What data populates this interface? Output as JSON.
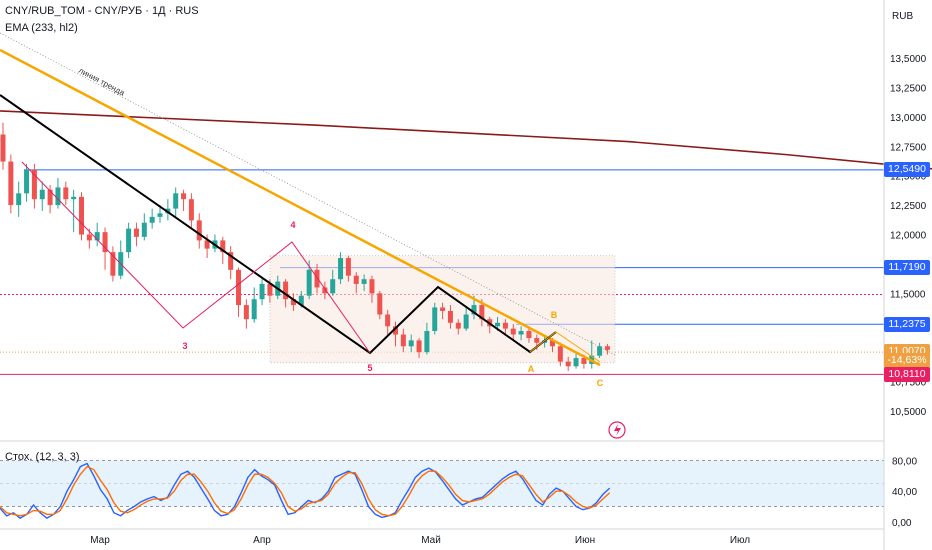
{
  "header": {
    "symbol": "CNY/RUB_TOM - CNY/РУБ · 1Д · RUS",
    "indicator": "EMA (233, hl2)"
  },
  "axis": {
    "currency": "RUB",
    "ticks": [
      "13,5000",
      "13,2500",
      "13,0000",
      "12,7500",
      "12,5000",
      "12,2500",
      "12,0000",
      "11,7500",
      "11,5000",
      "11,2500",
      "11,0000",
      "10,7500",
      "10,5000"
    ],
    "tick_values": [
      13.5,
      13.25,
      13.0,
      12.75,
      12.5,
      12.25,
      12.0,
      11.75,
      11.5,
      11.25,
      11.0,
      10.75,
      10.5
    ],
    "months": [
      "Мар",
      "Апр",
      "Май",
      "Июн",
      "Июл"
    ]
  },
  "price_tags": [
    {
      "label": "12,5490",
      "value": 12.549,
      "color": "#2962ff"
    },
    {
      "label": "11,7190",
      "value": 11.719,
      "color": "#2962ff"
    },
    {
      "label": "11,2375",
      "value": 11.2375,
      "color": "#2962ff"
    },
    {
      "label": "11,0070",
      "value": 11.007,
      "color": "#f0a040"
    },
    {
      "label": "-14,63%",
      "value": 10.93,
      "color": "#f0a040"
    },
    {
      "label": "10,8110",
      "value": 10.811,
      "color": "#e91e63"
    }
  ],
  "annotations": {
    "trend_label": "линия тренда",
    "waves": [
      {
        "t": "3",
        "c": "#e91e63"
      },
      {
        "t": "4",
        "c": "#e91e63"
      },
      {
        "t": "5",
        "c": "#e91e63"
      },
      {
        "t": "A",
        "c": "#f7a600"
      },
      {
        "t": "B",
        "c": "#f7a600"
      },
      {
        "t": "C",
        "c": "#f7a600"
      }
    ]
  },
  "stochastic": {
    "label": "Стох. (12, 3, 3)",
    "ticks": [
      "80,00",
      "40,00",
      "0,00"
    ],
    "tick_values": [
      80,
      40,
      0
    ]
  },
  "chart_data": {
    "type": "candlestick",
    "ylim": [
      10.35,
      13.6
    ],
    "ema": [
      [
        0,
        13.05
      ],
      [
        20,
        12.99
      ],
      [
        40,
        12.93
      ],
      [
        60,
        12.86
      ],
      [
        80,
        12.79
      ],
      [
        100,
        12.68
      ],
      [
        120,
        12.55
      ],
      [
        140,
        12.4
      ],
      [
        152,
        12.25
      ]
    ],
    "candles": [
      [
        12.85,
        12.62,
        12.95,
        12.55
      ],
      [
        12.62,
        12.25,
        12.68,
        12.18
      ],
      [
        12.25,
        12.35,
        12.45,
        12.15
      ],
      [
        12.35,
        12.55,
        12.6,
        12.28
      ],
      [
        12.55,
        12.3,
        12.6,
        12.22
      ],
      [
        12.3,
        12.38,
        12.45,
        12.2
      ],
      [
        12.38,
        12.25,
        12.42,
        12.18
      ],
      [
        12.25,
        12.4,
        12.48,
        12.22
      ],
      [
        12.4,
        12.3,
        12.45,
        12.25
      ],
      [
        12.3,
        12.32,
        12.38,
        12.02
      ],
      [
        12.32,
        12.0,
        12.36,
        11.95
      ],
      [
        12.0,
        11.95,
        12.05,
        11.88
      ],
      [
        11.95,
        12.02,
        12.1,
        11.9
      ],
      [
        12.02,
        11.85,
        12.06,
        11.7
      ],
      [
        11.85,
        11.65,
        11.9,
        11.6
      ],
      [
        11.65,
        11.85,
        11.95,
        11.62
      ],
      [
        11.85,
        12.05,
        12.1,
        11.8
      ],
      [
        12.05,
        11.98,
        12.1,
        11.9
      ],
      [
        11.98,
        12.1,
        12.18,
        11.95
      ],
      [
        12.1,
        12.15,
        12.22,
        12.05
      ],
      [
        12.15,
        12.18,
        12.25,
        12.1
      ],
      [
        12.18,
        12.22,
        12.3,
        12.12
      ],
      [
        12.22,
        12.35,
        12.4,
        12.15
      ],
      [
        12.35,
        12.3,
        12.38,
        12.2
      ],
      [
        12.3,
        12.12,
        12.35,
        12.05
      ],
      [
        12.12,
        11.95,
        12.18,
        11.88
      ],
      [
        11.95,
        11.88,
        12.0,
        11.8
      ],
      [
        11.88,
        11.95,
        12.0,
        11.85
      ],
      [
        11.95,
        11.85,
        11.98,
        11.75
      ],
      [
        11.85,
        11.7,
        11.9,
        11.62
      ],
      [
        11.7,
        11.4,
        11.72,
        11.3
      ],
      [
        11.4,
        11.28,
        11.45,
        11.2
      ],
      [
        11.28,
        11.45,
        11.55,
        11.25
      ],
      [
        11.45,
        11.58,
        11.62,
        11.4
      ],
      [
        11.58,
        11.48,
        11.62,
        11.42
      ],
      [
        11.48,
        11.6,
        11.65,
        11.45
      ],
      [
        11.6,
        11.45,
        11.62,
        11.38
      ],
      [
        11.45,
        11.4,
        11.5,
        11.35
      ],
      [
        11.4,
        11.48,
        11.52,
        11.38
      ],
      [
        11.48,
        11.7,
        11.78,
        11.45
      ],
      [
        11.7,
        11.55,
        11.75,
        11.5
      ],
      [
        11.55,
        11.5,
        11.6,
        11.45
      ],
      [
        11.5,
        11.62,
        11.7,
        11.48
      ],
      [
        11.62,
        11.8,
        11.85,
        11.58
      ],
      [
        11.8,
        11.65,
        11.82,
        11.6
      ],
      [
        11.65,
        11.58,
        11.68,
        11.5
      ],
      [
        11.58,
        11.62,
        11.66,
        11.52
      ],
      [
        11.62,
        11.5,
        11.65,
        11.42
      ],
      [
        11.5,
        11.32,
        11.52,
        11.28
      ],
      [
        11.32,
        11.22,
        11.36,
        11.15
      ],
      [
        11.22,
        11.15,
        11.26,
        11.05
      ],
      [
        11.15,
        11.05,
        11.2,
        11.0
      ],
      [
        11.05,
        11.1,
        11.15,
        11.0
      ],
      [
        11.1,
        11.0,
        11.12,
        10.95
      ],
      [
        11.0,
        11.18,
        11.25,
        10.98
      ],
      [
        11.18,
        11.38,
        11.42,
        11.15
      ],
      [
        11.38,
        11.35,
        11.42,
        11.28
      ],
      [
        11.35,
        11.25,
        11.4,
        11.2
      ],
      [
        11.25,
        11.2,
        11.28,
        11.15
      ],
      [
        11.2,
        11.32,
        11.38,
        11.18
      ],
      [
        11.32,
        11.4,
        11.48,
        11.28
      ],
      [
        11.4,
        11.28,
        11.45,
        11.22
      ],
      [
        11.28,
        11.22,
        11.3,
        11.16
      ],
      [
        11.22,
        11.25,
        11.3,
        11.18
      ],
      [
        11.25,
        11.2,
        11.28,
        11.14
      ],
      [
        11.2,
        11.15,
        11.24,
        11.1
      ],
      [
        11.15,
        11.18,
        11.22,
        11.1
      ],
      [
        11.18,
        11.12,
        11.22,
        11.08
      ],
      [
        11.12,
        11.08,
        11.15,
        11.02
      ],
      [
        11.08,
        11.1,
        11.14,
        11.04
      ],
      [
        11.1,
        11.05,
        11.12,
        11.0
      ],
      [
        11.05,
        10.92,
        11.08,
        10.88
      ],
      [
        10.92,
        10.88,
        10.96,
        10.84
      ],
      [
        10.88,
        10.95,
        11.0,
        10.86
      ],
      [
        10.95,
        10.9,
        10.98,
        10.86
      ],
      [
        10.9,
        10.97,
        11.1,
        10.86
      ],
      [
        10.97,
        11.05,
        11.08,
        10.95
      ],
      [
        11.05,
        11.02,
        11.07,
        10.98
      ]
    ],
    "stochastic": {
      "k": [
        18,
        8,
        12,
        5,
        10,
        22,
        12,
        5,
        10,
        20,
        40,
        55,
        72,
        76,
        60,
        42,
        30,
        12,
        8,
        15,
        20,
        26,
        30,
        33,
        28,
        32,
        48,
        62,
        66,
        58,
        44,
        30,
        15,
        8,
        10,
        20,
        38,
        58,
        68,
        60,
        55,
        48,
        28,
        10,
        12,
        20,
        28,
        25,
        30,
        40,
        58,
        62,
        66,
        62,
        42,
        20,
        10,
        6,
        8,
        12,
        28,
        42,
        58,
        66,
        70,
        65,
        54,
        42,
        30,
        22,
        26,
        30,
        32,
        40,
        48,
        56,
        62,
        66,
        56,
        42,
        28,
        22,
        36,
        44,
        40,
        30,
        20,
        16,
        18,
        25,
        36,
        44
      ],
      "d": [
        20,
        12,
        10,
        8,
        10,
        15,
        14,
        10,
        10,
        15,
        30,
        48,
        62,
        72,
        68,
        54,
        42,
        25,
        14,
        12,
        16,
        22,
        27,
        30,
        30,
        31,
        40,
        54,
        62,
        62,
        52,
        40,
        25,
        14,
        11,
        16,
        30,
        48,
        62,
        62,
        58,
        50,
        38,
        20,
        14,
        17,
        24,
        26,
        28,
        36,
        50,
        58,
        64,
        64,
        50,
        30,
        16,
        10,
        8,
        10,
        20,
        34,
        50,
        60,
        66,
        66,
        58,
        48,
        36,
        28,
        26,
        28,
        30,
        36,
        44,
        52,
        58,
        62,
        60,
        48,
        36,
        26,
        32,
        40,
        40,
        34,
        26,
        20,
        18,
        22,
        30,
        38
      ]
    }
  }
}
